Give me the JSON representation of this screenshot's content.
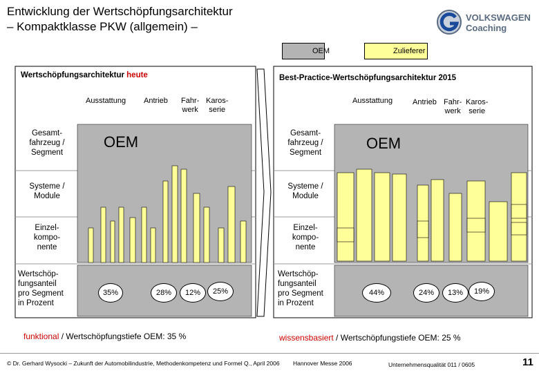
{
  "title": "Entwicklung der Wertschöpfungsarchitektur\n– Kompaktklasse  PKW (allgemein) –",
  "logo": {
    "text": "VOLKSWAGEN\nCoaching",
    "icon": "vw-coaching-g-icon",
    "color": "#5a6a80"
  },
  "legend": {
    "oem": "OEM",
    "zulieferer": "Zulieferer",
    "oem_color": "#b4b4b4",
    "zulieferer_color": "#ffff99"
  },
  "left": {
    "title_prefix": "Wertschöpfungsarchitektur ",
    "title_highlight": "heute",
    "headers": {
      "ausstattung": "Ausstattung",
      "antrieb": "Antrieb",
      "fahrwerk": "Fahr-\nwerk",
      "karosserie": "Karos-\nserie"
    },
    "oem_label": "OEM",
    "percentages": [
      "35%",
      "28%",
      "12%",
      "25%"
    ],
    "bottom_highlight": "funktional",
    "bottom_rest": " / Wertschöpfungstiefe OEM: 35 %"
  },
  "right": {
    "title": "Best-Practice-Wertschöpfungsarchitektur 2015",
    "headers": {
      "ausstattung": "Ausstattung",
      "antrieb": "Antrieb",
      "fahrwerk": "Fahr-\nwerk",
      "karosserie": "Karos-\nserie"
    },
    "oem_label": "OEM",
    "percentages": [
      "44%",
      "24%",
      "13%",
      "19%"
    ],
    "bottom_highlight": "wissensbasiert",
    "bottom_rest": " / Wertschöpfungstiefe OEM: 25 %"
  },
  "row_labels": {
    "gesamt": "Gesamt-\nfahrzeug /\nSegment",
    "systeme": "Systeme /\nModule",
    "einzel": "Einzel-\nkompo-\nnente",
    "anteil": "Wertschöp-\nfungsanteil\npro Segment\nin Prozent"
  },
  "footer": {
    "copyright": "© Dr. Gerhard Wysocki – Zukunft der Automobilindustrie, Methodenkompetenz und Formel Q., April 2006",
    "event": "Hannover Messe 2006",
    "series": "Unternehmensqualität 011 / 0605",
    "page": "11"
  }
}
